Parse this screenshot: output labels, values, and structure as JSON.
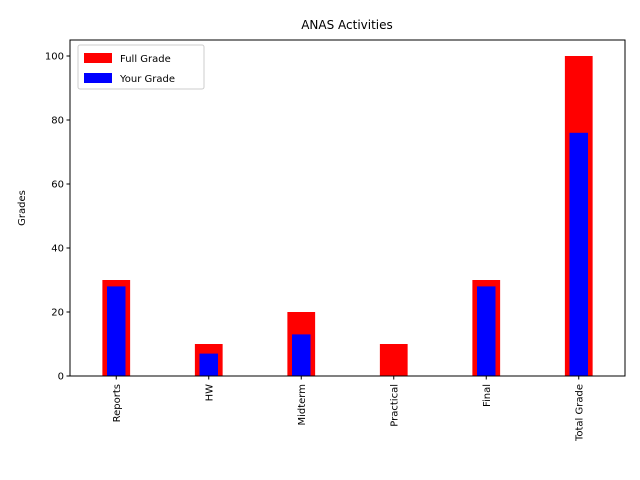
{
  "chart_data": {
    "type": "bar",
    "title": "ANAS Activities",
    "xlabel": "",
    "ylabel": "Grades",
    "categories": [
      "Reports",
      "HW",
      "Midterm",
      "Practical",
      "Final",
      "Total Grade"
    ],
    "series": [
      {
        "name": "Full Grade",
        "color": "#ff0000",
        "values": [
          30,
          10,
          20,
          10,
          30,
          100
        ]
      },
      {
        "name": "Your Grade",
        "color": "#0000ff",
        "values": [
          28,
          7,
          13,
          0,
          28,
          76
        ]
      }
    ],
    "ylim": [
      0,
      105
    ],
    "yticks": [
      0,
      20,
      40,
      60,
      80,
      100
    ],
    "grid": false,
    "legend_position": "top-left"
  }
}
